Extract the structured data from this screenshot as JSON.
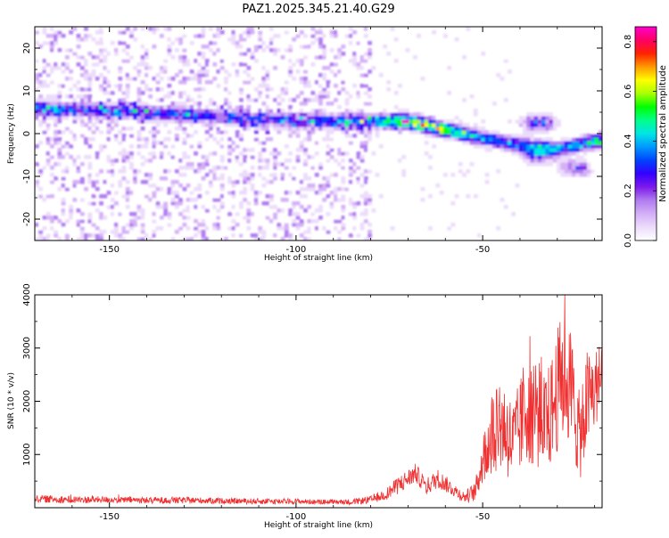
{
  "figure_title": "PAZ1.2025.345.21.40.G29",
  "chart_data": [
    {
      "type": "heatmap",
      "title": "PAZ1.2025.345.21.40.G29",
      "xlabel": "Height of straight line (km)",
      "ylabel": "Frequency (Hz)",
      "xlim": [
        -170,
        -18
      ],
      "ylim": [
        -25,
        25
      ],
      "x_ticks": [
        -150,
        -100,
        -50
      ],
      "y_ticks": [
        -20,
        -10,
        0,
        10,
        20
      ],
      "colorbar": {
        "label": "Normalized spectral amplitude",
        "range": [
          0.0,
          0.86
        ],
        "ticks": [
          0.0,
          0.2,
          0.4,
          0.6,
          0.8
        ],
        "colors": [
          "#ffffff",
          "#ecdcfb",
          "#d4b0f7",
          "#b07cf0",
          "#7d1aea",
          "#3300ff",
          "#0044ff",
          "#0099ff",
          "#00e5e5",
          "#00ff88",
          "#00ff00",
          "#aaff00",
          "#ffff00",
          "#ff9900",
          "#ff2200",
          "#ff0066",
          "#ff00cc"
        ]
      },
      "ridge": {
        "description_points_x": [
          -170,
          -150,
          -130,
          -110,
          -100,
          -90,
          -80,
          -70,
          -60,
          -50,
          -40,
          -30,
          -18
        ],
        "frequency": [
          6.0,
          5.5,
          4.5,
          3.5,
          3.0,
          3.0,
          3.0,
          3.0,
          1.0,
          -1.0,
          -2.5,
          -3.5,
          -1.5
        ],
        "peak_amplitude": [
          0.35,
          0.32,
          0.3,
          0.28,
          0.3,
          0.34,
          0.4,
          0.75,
          0.65,
          0.4,
          0.36,
          0.38,
          0.5
        ]
      },
      "secondary_features": [
        {
          "x": -35,
          "frequency": 2.5,
          "amplitude": 0.35
        },
        {
          "x": -35,
          "frequency": -5.0,
          "amplitude": 0.3
        },
        {
          "x": -25,
          "frequency": -8.0,
          "amplitude": 0.28
        }
      ],
      "noise_region_x": [
        -170,
        -80
      ]
    },
    {
      "type": "line",
      "xlabel": "Height of straight line (km)",
      "ylabel": "SNR (10 * v/v)",
      "xlim": [
        -170,
        -18
      ],
      "ylim": [
        0,
        4000
      ],
      "x_ticks": [
        -150,
        -100,
        -50
      ],
      "y_ticks": [
        1000,
        2000,
        3000,
        4000
      ],
      "series": [
        {
          "name": "SNR",
          "color": "#f03030",
          "anchor_x": [
            -170,
            -160,
            -150,
            -140,
            -130,
            -120,
            -110,
            -100,
            -95,
            -90,
            -85,
            -80,
            -76,
            -72,
            -68,
            -65,
            -62,
            -58,
            -55,
            -52,
            -50,
            -48,
            -46,
            -44,
            -42,
            -40,
            -38,
            -36,
            -34,
            -32,
            -30,
            -28,
            -26,
            -24,
            -22,
            -20,
            -18
          ],
          "anchor_mean": [
            170,
            150,
            150,
            140,
            140,
            130,
            120,
            120,
            110,
            110,
            110,
            150,
            250,
            450,
            650,
            400,
            550,
            350,
            200,
            300,
            900,
            1300,
            1700,
            1500,
            1200,
            1500,
            2000,
            1900,
            1600,
            1700,
            2200,
            2600,
            2100,
            1300,
            2000,
            2200,
            2500
          ],
          "anchor_spread": [
            80,
            80,
            70,
            70,
            70,
            60,
            60,
            60,
            50,
            50,
            60,
            80,
            120,
            200,
            200,
            180,
            200,
            150,
            120,
            200,
            500,
            900,
            1100,
            1000,
            900,
            1000,
            1300,
            1300,
            1100,
            1100,
            1300,
            1400,
            1300,
            900,
            1100,
            900,
            700
          ],
          "peak": {
            "x": -28,
            "y": 4000
          }
        }
      ]
    }
  ]
}
